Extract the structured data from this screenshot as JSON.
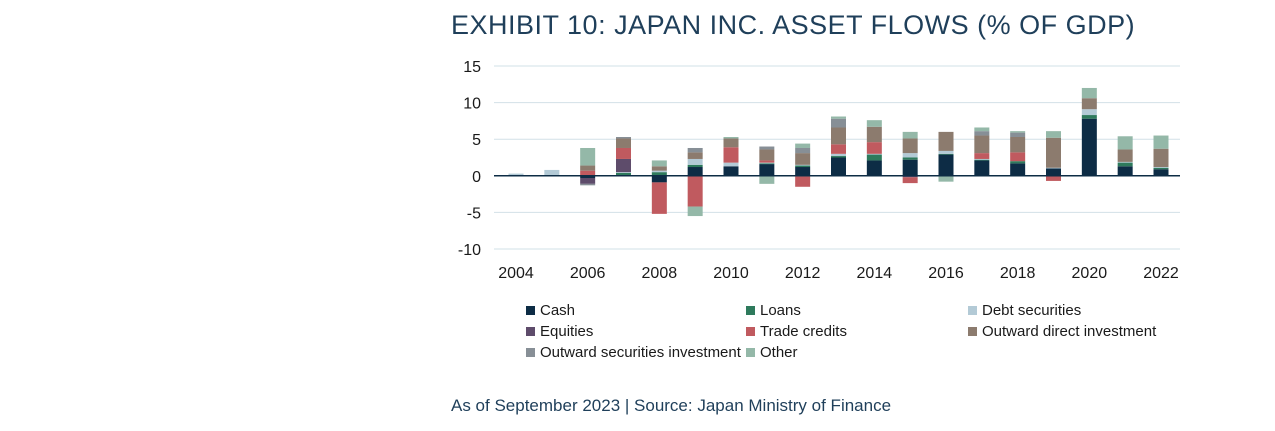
{
  "title": "EXHIBIT 10: JAPAN INC. ASSET FLOWS (% OF GDP)",
  "source_note": "As of September 2023 | Source: Japan Ministry of Finance",
  "chart_data": {
    "type": "bar",
    "stacked": true,
    "title": "EXHIBIT 10: JAPAN INC. ASSET FLOWS (% OF GDP)",
    "xlabel": "",
    "ylabel": "",
    "categories": [
      "2004",
      "2005",
      "2006",
      "2007",
      "2008",
      "2009",
      "2010",
      "2011",
      "2012",
      "2013",
      "2014",
      "2015",
      "2016",
      "2017",
      "2018",
      "2019",
      "2020",
      "2021",
      "2022"
    ],
    "x_tick_labels": [
      "2004",
      "2006",
      "2008",
      "2010",
      "2012",
      "2014",
      "2016",
      "2018",
      "2020",
      "2022"
    ],
    "y_ticks": [
      15,
      10,
      5,
      0,
      -5,
      -10
    ],
    "ylim": [
      -10,
      15
    ],
    "grid": true,
    "legend_position": "bottom",
    "series": [
      {
        "name": "Cash",
        "color": "#0d2c45",
        "values": [
          0,
          0,
          -0.3,
          0.1,
          -0.9,
          1.2,
          1.3,
          1.6,
          1.2,
          2.5,
          2.1,
          2.2,
          2.9,
          2.1,
          1.7,
          1.0,
          7.8,
          1.3,
          0.9
        ]
      },
      {
        "name": "Loans",
        "color": "#2e7a5c",
        "values": [
          0,
          0,
          0,
          0.3,
          0.5,
          0.3,
          0,
          0.1,
          0.2,
          0.2,
          0.8,
          0.3,
          0.1,
          0.1,
          0.3,
          0,
          0.5,
          0.5,
          0.2
        ]
      },
      {
        "name": "Debt securities",
        "color": "#b3cad6",
        "values": [
          0.3,
          0.8,
          0.1,
          0.1,
          0.2,
          0.8,
          0.5,
          0.1,
          0.1,
          0.3,
          0.1,
          0.6,
          0.4,
          0.1,
          0,
          0.1,
          0.8,
          0.1,
          0.1
        ]
      },
      {
        "name": "Equities",
        "color": "#5e4c6b",
        "values": [
          0,
          0,
          -0.8,
          1.8,
          0,
          0,
          0,
          0,
          -0.1,
          0,
          0,
          -0.2,
          0,
          0,
          0,
          0,
          0,
          0,
          0
        ]
      },
      {
        "name": "Trade credits",
        "color": "#c05a5f",
        "values": [
          0,
          0,
          0.6,
          1.5,
          -4.3,
          -4.2,
          2.1,
          0.3,
          -1.4,
          1.3,
          1.6,
          -0.8,
          0,
          0.8,
          1.2,
          -0.7,
          0,
          0,
          0
        ]
      },
      {
        "name": "Outward direct investment",
        "color": "#8c7b6e",
        "values": [
          0,
          0,
          0.7,
          1.3,
          0.6,
          0.9,
          1.2,
          1.5,
          1.6,
          2.3,
          2.1,
          2.0,
          2.6,
          2.4,
          2.1,
          4.1,
          1.5,
          1.7,
          2.5
        ]
      },
      {
        "name": "Outward securities investment",
        "color": "#878f96",
        "values": [
          0,
          0,
          -0.2,
          0.2,
          0,
          0.6,
          0,
          0.4,
          0.7,
          1.2,
          0,
          0,
          0,
          0.6,
          0.6,
          0,
          0,
          0,
          0
        ]
      },
      {
        "name": "Other",
        "color": "#94b8a8",
        "values": [
          0,
          0,
          2.4,
          0,
          0.8,
          -1.3,
          0.2,
          -1.1,
          0.6,
          0.3,
          0.9,
          0.9,
          -0.8,
          0.5,
          0.2,
          0.9,
          1.4,
          1.8,
          1.8
        ]
      }
    ]
  }
}
